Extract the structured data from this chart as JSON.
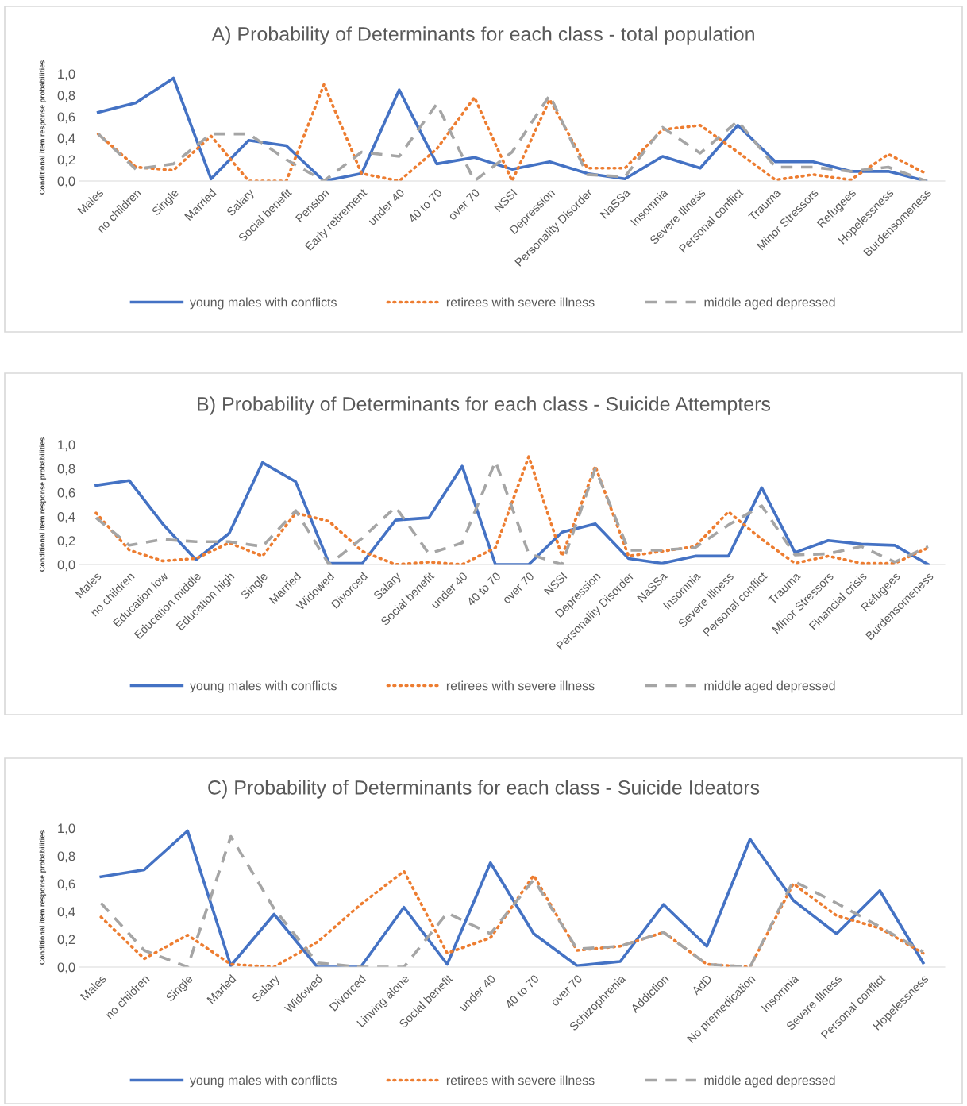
{
  "chart_data": [
    {
      "type": "line",
      "title": "A) Probability of Determinants for each class - total population",
      "ylabel": "Conditional item response probabilities",
      "categories": [
        "Males",
        "no children",
        "Single",
        "Married",
        "Salary",
        "Social benefit",
        "Pension",
        "Early retirement",
        "under 40",
        "40 to 70",
        "over 70",
        "NSSI",
        "Depression",
        "Personality Disorder",
        "NaSSa",
        "Insomnia",
        "Severe Illness",
        "Personal conflict",
        "Trauma",
        "Minor Stressors",
        "Refugees",
        "Hopelessness",
        "Burdensomeness"
      ],
      "series": [
        {
          "name": "young males with conflicts",
          "color": "#4472c4",
          "line_style": "solid",
          "values": [
            0.64,
            0.73,
            0.96,
            0.02,
            0.38,
            0.33,
            0.0,
            0.07,
            0.85,
            0.16,
            0.22,
            0.11,
            0.18,
            0.07,
            0.02,
            0.23,
            0.12,
            0.52,
            0.18,
            0.18,
            0.09,
            0.09,
            0.0
          ]
        },
        {
          "name": "retirees with severe illness",
          "color": "#ed7d31",
          "line_style": "dotted",
          "values": [
            0.44,
            0.13,
            0.1,
            0.42,
            0.0,
            0.0,
            0.9,
            0.07,
            0.0,
            0.3,
            0.78,
            0.0,
            0.76,
            0.12,
            0.12,
            0.48,
            0.52,
            0.27,
            0.01,
            0.06,
            0.01,
            0.25,
            0.07
          ]
        },
        {
          "name": "middle aged depressed",
          "color": "#a5a5a5",
          "line_style": "dashed",
          "values": [
            0.44,
            0.11,
            0.16,
            0.44,
            0.44,
            0.2,
            0.0,
            0.27,
            0.23,
            0.72,
            0.0,
            0.27,
            0.8,
            0.06,
            0.04,
            0.5,
            0.26,
            0.56,
            0.13,
            0.13,
            0.09,
            0.13,
            0.0
          ]
        }
      ],
      "ylim": [
        0,
        1
      ],
      "yticks": [
        {
          "value": 0,
          "label": "0,0"
        },
        {
          "value": 0.2,
          "label": "0,2"
        },
        {
          "value": 0.4,
          "label": "0,4"
        },
        {
          "value": 0.6,
          "label": "0,6"
        },
        {
          "value": 0.8,
          "label": "0,8"
        },
        {
          "value": 1,
          "label": "1,0"
        }
      ],
      "grid": false,
      "legend": "bottom",
      "marker": "none"
    },
    {
      "type": "line",
      "title": "B) Probability of Determinants for each class - Suicide Attempters",
      "ylabel": "Conditional item response probabilities",
      "categories": [
        "Males",
        "no children",
        "Education low",
        "Education middle",
        "Education high",
        "Single",
        "Married",
        "Widowed",
        "Divorced",
        "Salary",
        "Social benefit",
        "under 40",
        "40 to 70",
        "over 70",
        "NSSI",
        "Depression",
        "Personality Disorder",
        "NaSSa",
        "Insomnia",
        "Severe Illness",
        "Personal conflict",
        "Trauma",
        "Minor Stressors",
        "Financial crisis",
        "Refugees",
        "Burdensomeness"
      ],
      "series": [
        {
          "name": "young males with conflicts",
          "color": "#4472c4",
          "line_style": "solid",
          "values": [
            0.66,
            0.7,
            0.34,
            0.04,
            0.26,
            0.85,
            0.69,
            0.01,
            0.01,
            0.37,
            0.39,
            0.82,
            0.0,
            0.0,
            0.27,
            0.34,
            0.05,
            0.01,
            0.07,
            0.07,
            0.64,
            0.1,
            0.2,
            0.17,
            0.16,
            0.0
          ]
        },
        {
          "name": "retirees with severe illness",
          "color": "#ed7d31",
          "line_style": "dotted",
          "values": [
            0.43,
            0.12,
            0.03,
            0.05,
            0.18,
            0.07,
            0.43,
            0.36,
            0.11,
            0.0,
            0.02,
            0.0,
            0.14,
            0.9,
            0.07,
            0.82,
            0.07,
            0.11,
            0.15,
            0.44,
            0.21,
            0.01,
            0.07,
            0.01,
            0.01,
            0.14
          ]
        },
        {
          "name": "middle aged depressed",
          "color": "#a5a5a5",
          "line_style": "dashed",
          "values": [
            0.39,
            0.16,
            0.21,
            0.19,
            0.19,
            0.15,
            0.45,
            0.0,
            0.22,
            0.48,
            0.09,
            0.18,
            0.86,
            0.09,
            0.0,
            0.8,
            0.12,
            0.12,
            0.14,
            0.33,
            0.49,
            0.08,
            0.09,
            0.15,
            0.02,
            0.15
          ]
        }
      ],
      "ylim": [
        0,
        1
      ],
      "yticks": [
        {
          "value": 0,
          "label": "0,0"
        },
        {
          "value": 0.2,
          "label": "0,2"
        },
        {
          "value": 0.4,
          "label": "0,4"
        },
        {
          "value": 0.6,
          "label": "0,6"
        },
        {
          "value": 0.8,
          "label": "0,8"
        },
        {
          "value": 1,
          "label": "1,0"
        }
      ],
      "grid": false,
      "legend": "bottom",
      "marker": "none"
    },
    {
      "type": "line",
      "title": "C) Probability of Determinants for each class - Suicide Ideators",
      "ylabel": "Conditional item response probabilities",
      "categories": [
        "Males",
        "no children",
        "Single",
        "Maried",
        "Salary",
        "Widowed",
        "Divorced",
        "Linving alone",
        "Social benefit",
        "under 40",
        "40 to 70",
        "over 70",
        "Schizophrenia",
        "Addiction",
        "AdD",
        "No premedication",
        "Insomnia",
        "Severe Illness",
        "Personal conflict",
        "Hopelessness"
      ],
      "series": [
        {
          "name": "young males with conflicts",
          "color": "#4472c4",
          "line_style": "solid",
          "values": [
            0.65,
            0.7,
            0.98,
            0.01,
            0.38,
            0.0,
            0.0,
            0.43,
            0.02,
            0.75,
            0.24,
            0.01,
            0.04,
            0.45,
            0.15,
            0.92,
            0.48,
            0.24,
            0.55,
            0.03
          ]
        },
        {
          "name": "retirees with severe illness",
          "color": "#ed7d31",
          "line_style": "dotted",
          "values": [
            0.36,
            0.06,
            0.23,
            0.02,
            0.0,
            0.18,
            0.45,
            0.69,
            0.1,
            0.21,
            0.66,
            0.12,
            0.15,
            0.25,
            0.02,
            0.0,
            0.6,
            0.37,
            0.28,
            0.1
          ]
        },
        {
          "name": "middle aged depressed",
          "color": "#a5a5a5",
          "line_style": "dashed",
          "values": [
            0.46,
            0.12,
            0.0,
            0.94,
            0.42,
            0.03,
            0.0,
            0.0,
            0.39,
            0.24,
            0.63,
            0.13,
            0.15,
            0.25,
            0.02,
            0.0,
            0.62,
            0.46,
            0.29,
            0.11
          ]
        }
      ],
      "ylim": [
        0,
        1
      ],
      "yticks": [
        {
          "value": 0,
          "label": "0,0"
        },
        {
          "value": 0.2,
          "label": "0,2"
        },
        {
          "value": 0.4,
          "label": "0,4"
        },
        {
          "value": 0.6,
          "label": "0,6"
        },
        {
          "value": 0.8,
          "label": "0,8"
        },
        {
          "value": 1,
          "label": "1,0"
        }
      ],
      "grid": false,
      "legend": "bottom",
      "marker": "none"
    }
  ]
}
